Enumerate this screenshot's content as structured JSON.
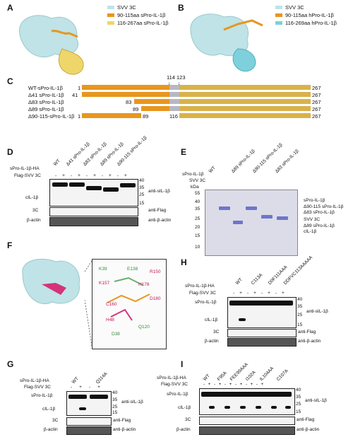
{
  "panels": {
    "A": {
      "label": "A",
      "legend": [
        "SVV 3C",
        "90-115aa sPro-IL-1β",
        "116-267aa sPro-IL-1β"
      ],
      "colors": [
        "#bfe3e6",
        "#e8961e",
        "#eed66a"
      ]
    },
    "B": {
      "label": "B",
      "legend": [
        "SVV 3C",
        "90-115aa hPro-IL-1β",
        "116-269aa hPro-IL-1β"
      ],
      "colors": [
        "#bfe3e6",
        "#e8961e",
        "#7ed0dc"
      ]
    },
    "C": {
      "label": "C",
      "markers": [
        "114",
        "123"
      ],
      "rows": [
        {
          "name": "WT-sPro-IL-1β",
          "start": "1",
          "end": "267"
        },
        {
          "name": "Δ41 sPro-IL-1β",
          "start": "41",
          "end": "267"
        },
        {
          "name": "Δ83 sPro-IL-1β",
          "start": "83",
          "end": "267"
        },
        {
          "name": "Δ89 sPro-IL-1β",
          "start": "89",
          "end": "267"
        },
        {
          "name": "Δ90-115-sPro-IL-1β",
          "start": "1",
          "mid1": "89",
          "mid2": "116",
          "end": "267"
        }
      ]
    },
    "D": {
      "label": "D",
      "lanes": [
        "WT",
        "Δ41 sPro-IL-1β",
        "Δ83 sPro-IL-1β",
        "Δ89 sPro-IL-1β",
        "Δ90-115 sPro-IL-1β"
      ],
      "row1": "sPro-IL-1β-HA",
      "row2": "Flag-SVV 3C",
      "signs": [
        "-",
        "+",
        "-",
        "+",
        "-",
        "+",
        "-",
        "+",
        "-",
        "+"
      ],
      "bands_left": [
        "cIL-1β",
        "3C",
        "β-actin"
      ],
      "bands_right": [
        "anti-sIL-1β",
        "anti-Flag",
        "anti-β-actin"
      ],
      "mw": [
        "40",
        "35",
        "25",
        "15"
      ]
    },
    "E": {
      "label": "E",
      "lanes": [
        "WT",
        "Δ89 sPro-IL-1β",
        "Δ90-115 sPro-IL-1β",
        "Δ83 sPro-IL-1β"
      ],
      "row1": "sPro-IL-1β",
      "row2": "SVV 3C",
      "kda": "kDa",
      "mw": [
        "55",
        "40",
        "35",
        "25",
        "20",
        "15",
        "10"
      ],
      "right": [
        "sPro-IL-1β",
        "Δ90-115 sPro-IL-1β",
        "Δ83 sPro-IL-1β",
        "SVV 3C",
        "Δ89 sPro-IL-1β",
        "cIL-1β"
      ]
    },
    "F": {
      "label": "F",
      "residues": [
        "H48",
        "K157",
        "H178",
        "D180",
        "C160",
        "R150",
        "K39",
        "D38",
        "Q120",
        "E138"
      ]
    },
    "G": {
      "label": "G",
      "lanes": [
        "WT",
        "Q114A"
      ],
      "row1": "sPro-IL-1β-HA",
      "row2": "Flag-SVV 3C",
      "signs": [
        "-",
        "+",
        "-",
        "+"
      ],
      "left": [
        "sPro-IL-1β",
        "cIL-1β",
        "3C",
        "β-actin"
      ],
      "right": [
        "anti-sIL-1β",
        "anti-Flag",
        "anti-β-actin"
      ],
      "mw": [
        "40",
        "35",
        "25",
        "15"
      ]
    },
    "H": {
      "label": "H",
      "lanes": [
        "WT",
        "C113A",
        "D0F111AAA",
        "DDFVC113AAAAA"
      ],
      "row1": "sPro-IL-1β-HA",
      "row2": "Flag-SVV 3C",
      "signs": [
        "-",
        "+",
        "-",
        "+",
        "-",
        "+",
        "-",
        "+"
      ],
      "left": [
        "sPro-IL-1β",
        "cIL-1β",
        "3C",
        "β-actin"
      ],
      "right": [
        "anti-sIL-1β",
        "anti-Flag",
        "anti-β-actin"
      ],
      "mw": [
        "40",
        "35",
        "25",
        "15"
      ]
    },
    "I": {
      "label": "I",
      "lanes": [
        "WT",
        "F95A",
        "FEE99AAA",
        "I102A",
        "IL104AA",
        "C107A"
      ],
      "row1": "sPro-IL-1β-HA",
      "row2": "Flag-SVV 3C",
      "signs": [
        "-",
        "+",
        "-",
        "+",
        "-",
        "+",
        "-",
        "+",
        "-",
        "+",
        "-",
        "+"
      ],
      "left": [
        "sPro-IL-1β",
        "cIL-1β",
        "3C",
        "β-actin"
      ],
      "right": [
        "anti-sIL-1β",
        "anti-Flag",
        "anti-β-actin"
      ],
      "mw": [
        "40",
        "35",
        "25",
        "15"
      ]
    }
  }
}
